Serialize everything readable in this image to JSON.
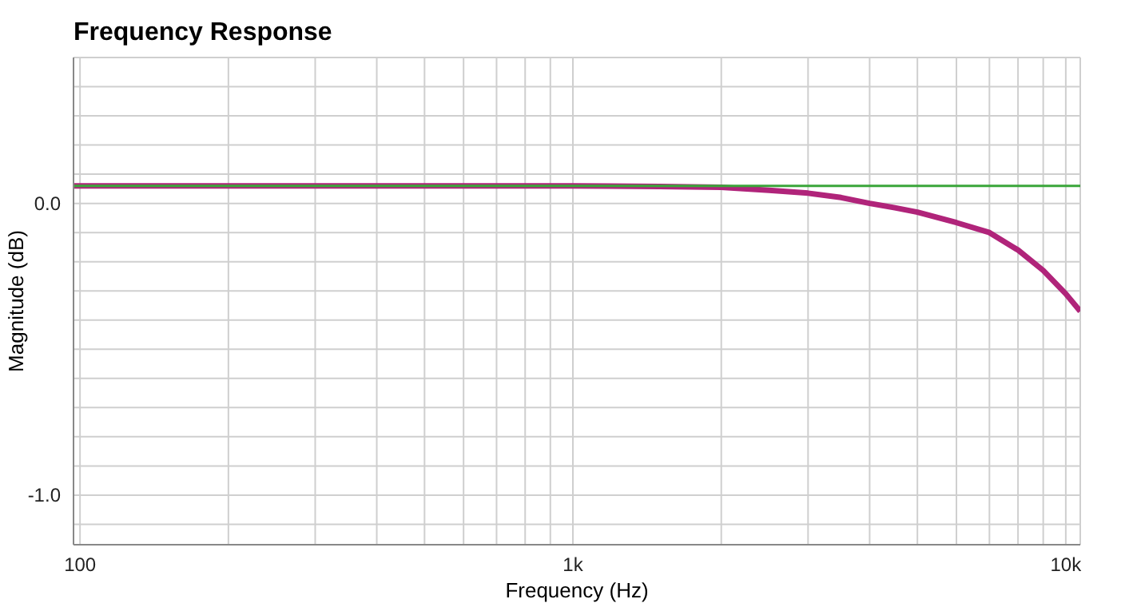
{
  "chart_data": {
    "type": "line",
    "title": "Frequency Response",
    "xlabel": "Frequency (Hz)",
    "ylabel": "Magnitude (dB)",
    "log": "x",
    "grid": true,
    "marker": "none",
    "line_style": "solid",
    "xlim": [
      97,
      10700
    ],
    "ylim": [
      -1.17,
      0.5
    ],
    "xticks": [
      {
        "value": 100,
        "label": "100"
      },
      {
        "value": 200,
        "label": null
      },
      {
        "value": 300,
        "label": null
      },
      {
        "value": 400,
        "label": null
      },
      {
        "value": 500,
        "label": null
      },
      {
        "value": 600,
        "label": null
      },
      {
        "value": 700,
        "label": null
      },
      {
        "value": 800,
        "label": null
      },
      {
        "value": 900,
        "label": null
      },
      {
        "value": 1000,
        "label": "1k"
      },
      {
        "value": 2000,
        "label": null
      },
      {
        "value": 3000,
        "label": null
      },
      {
        "value": 4000,
        "label": null
      },
      {
        "value": 5000,
        "label": null
      },
      {
        "value": 6000,
        "label": null
      },
      {
        "value": 7000,
        "label": null
      },
      {
        "value": 8000,
        "label": null
      },
      {
        "value": 9000,
        "label": null
      },
      {
        "value": 10000,
        "label": "10k"
      }
    ],
    "yticks": [
      {
        "value": -1.1,
        "label": null
      },
      {
        "value": -1.0,
        "label": "-1.0"
      },
      {
        "value": -0.9,
        "label": null
      },
      {
        "value": -0.8,
        "label": null
      },
      {
        "value": -0.7,
        "label": null
      },
      {
        "value": -0.6,
        "label": null
      },
      {
        "value": -0.5,
        "label": null
      },
      {
        "value": -0.4,
        "label": null
      },
      {
        "value": -0.3,
        "label": null
      },
      {
        "value": -0.2,
        "label": null
      },
      {
        "value": -0.1,
        "label": null
      },
      {
        "value": 0,
        "label": "0.0"
      },
      {
        "value": 0.1,
        "label": null
      },
      {
        "value": 0.2,
        "label": null
      },
      {
        "value": 0.3,
        "label": null
      },
      {
        "value": 0.4,
        "label": null
      }
    ],
    "series": [
      {
        "color": "#3aa63a",
        "x": [
          97,
          10700
        ],
        "values": [
          0.06,
          0.06
        ]
      },
      {
        "color": "#b0247a",
        "x": [
          97,
          500,
          1000,
          1500,
          2000,
          2500,
          3000,
          3500,
          4000,
          4500,
          5000,
          6000,
          7000,
          8000,
          9000,
          10000,
          10700
        ],
        "values": [
          0.06,
          0.06,
          0.06,
          0.058,
          0.055,
          0.045,
          0.035,
          0.02,
          0.0,
          -0.015,
          -0.03,
          -0.066,
          -0.1,
          -0.16,
          -0.23,
          -0.31,
          -0.37
        ]
      }
    ]
  }
}
